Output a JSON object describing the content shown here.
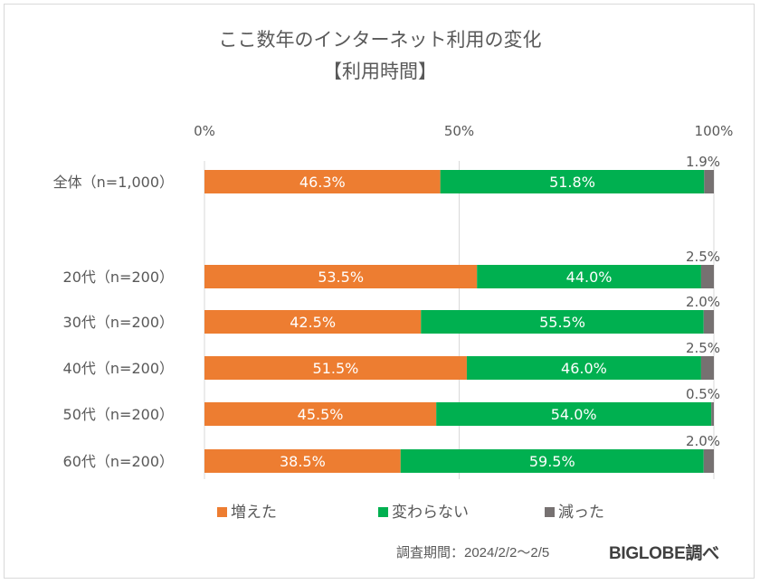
{
  "chart_data": {
    "type": "bar",
    "orientation": "horizontal-stacked-100",
    "title": "ここ数年のインターネット利用の変化",
    "subtitle": "【利用時間】",
    "xlim": [
      0,
      100
    ],
    "xticks": [
      "0%",
      "50%",
      "100%"
    ],
    "xtick_values": [
      0,
      50,
      100
    ],
    "grid": true,
    "legend_position": "bottom",
    "categories": [
      "全体（n=1,000）",
      "20代（n=200）",
      "30代（n=200）",
      "40代（n=200）",
      "50代（n=200）",
      "60代（n=200）"
    ],
    "series": [
      {
        "name": "増えた",
        "color": "#ED7D31",
        "values": [
          46.3,
          53.5,
          42.5,
          51.5,
          45.5,
          38.5
        ],
        "labels": [
          "46.3%",
          "53.5%",
          "42.5%",
          "51.5%",
          "45.5%",
          "38.5%"
        ]
      },
      {
        "name": "変わらない",
        "color": "#00B050",
        "values": [
          51.8,
          44.0,
          55.5,
          46.0,
          54.0,
          59.5
        ],
        "labels": [
          "51.8%",
          "44.0%",
          "55.5%",
          "46.0%",
          "54.0%",
          "59.5%"
        ]
      },
      {
        "name": "減った",
        "color": "#767171",
        "values": [
          1.9,
          2.5,
          2.0,
          2.5,
          0.5,
          2.0
        ],
        "labels": [
          "1.9%",
          "2.5%",
          "2.0%",
          "2.5%",
          "0.5%",
          "2.0%"
        ]
      }
    ]
  },
  "footer": {
    "period": "調査期間：2024/2/2～2/5",
    "source": "BIGLOBE調べ"
  }
}
